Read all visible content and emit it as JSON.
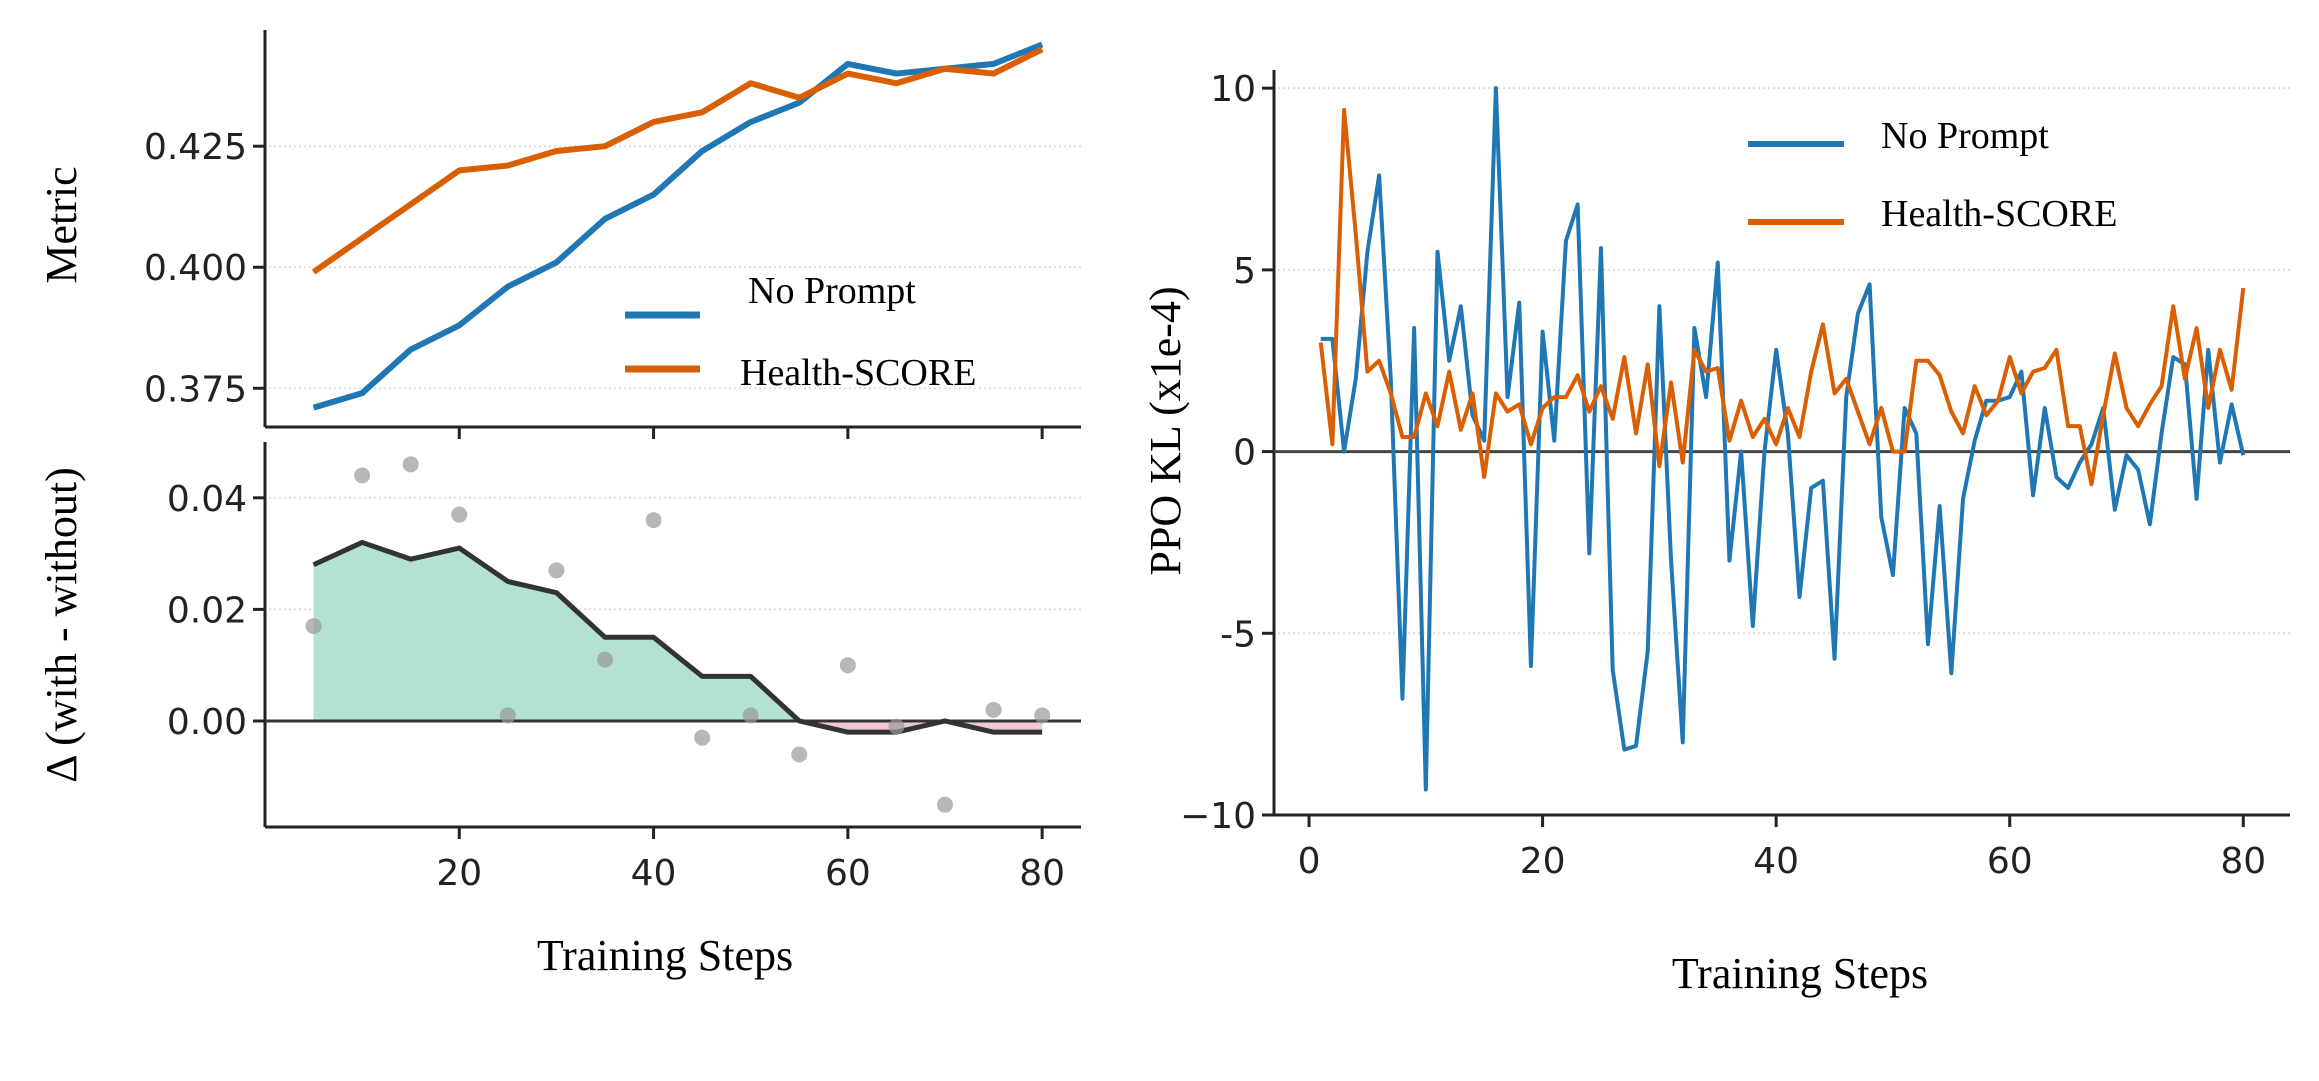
{
  "chart_data": [
    {
      "type": "line",
      "ylabel": "Metric",
      "x": [
        5,
        10,
        15,
        20,
        25,
        30,
        35,
        40,
        45,
        50,
        55,
        60,
        65,
        70,
        75,
        80
      ],
      "ylim": [
        0.367,
        0.449
      ],
      "xlim": [
        0,
        84
      ],
      "yticks": [
        0.375,
        0.4,
        0.425
      ],
      "ytick_labels": [
        "0.375",
        "0.400",
        "0.425"
      ],
      "grid": "horizontal dotted",
      "legend_placement": "lower-right",
      "series": [
        {
          "name": "No Prompt",
          "color": "#1f77b4",
          "values": [
            0.371,
            0.374,
            0.383,
            0.388,
            0.396,
            0.401,
            0.41,
            0.415,
            0.424,
            0.43,
            0.434,
            0.442,
            0.44,
            0.441,
            0.442,
            0.446
          ]
        },
        {
          "name": "Health-SCORE",
          "color": "#d95f02",
          "values": [
            0.399,
            0.406,
            0.413,
            0.42,
            0.421,
            0.424,
            0.425,
            0.43,
            0.432,
            0.438,
            0.435,
            0.44,
            0.438,
            0.441,
            0.44,
            0.445
          ]
        }
      ]
    },
    {
      "type": "area",
      "xlabel": "Training Steps",
      "ylabel": "Δ (with - without)",
      "x": [
        5,
        10,
        15,
        20,
        25,
        30,
        35,
        40,
        45,
        50,
        55,
        60,
        65,
        70,
        75,
        80
      ],
      "ylim": [
        -0.019,
        0.05
      ],
      "xlim": [
        0,
        84
      ],
      "xticks": [
        20,
        40,
        60,
        80
      ],
      "xtick_labels": [
        "20",
        "40",
        "60",
        "80"
      ],
      "yticks": [
        0.0,
        0.02,
        0.04
      ],
      "ytick_labels": [
        "0.00",
        "0.02",
        "0.04"
      ],
      "grid": "horizontal dotted",
      "smoothed": [
        0.028,
        0.032,
        0.029,
        0.031,
        0.025,
        0.023,
        0.015,
        0.015,
        0.008,
        0.008,
        0.0,
        -0.002,
        -0.002,
        0.0,
        -0.002,
        -0.002
      ],
      "points": [
        0.017,
        0.044,
        0.046,
        0.037,
        0.001,
        0.027,
        0.011,
        0.036,
        -0.003,
        0.001,
        -0.006,
        0.01,
        -0.001,
        -0.015,
        0.002,
        0.001
      ],
      "colors": {
        "positive_fill": "#b3e2d3",
        "negative_fill": "#f4c6dc",
        "line": "#333333",
        "points": "#999999"
      }
    },
    {
      "type": "line",
      "xlabel": "Training Steps",
      "ylabel": "PPO KL (x1e-4)",
      "xlim": [
        -3,
        84
      ],
      "ylim": [
        -10,
        10.5
      ],
      "xticks": [
        0,
        20,
        40,
        60,
        80
      ],
      "xtick_labels": [
        "0",
        "20",
        "40",
        "60",
        "80"
      ],
      "yticks": [
        -10,
        -5,
        0,
        5,
        10
      ],
      "ytick_labels": [
        "−10",
        "-5",
        "0",
        "5",
        "10"
      ],
      "grid": "horizontal dotted",
      "legend_placement": "top-right",
      "series": [
        {
          "name": "No Prompt",
          "color": "#1f77b4",
          "values": [
            3.1,
            3.1,
            0,
            2,
            5.5,
            7.6,
            2,
            -6.8,
            3.4,
            -9.3,
            5.5,
            2.5,
            4,
            1,
            0.3,
            10,
            1.5,
            4.1,
            -5.9,
            3.3,
            0.3,
            5.8,
            6.8,
            -2.8,
            5.6,
            -6,
            -8.2,
            -8.1,
            -5.5,
            4,
            -3,
            -8,
            3.4,
            1.5,
            5.2,
            -3,
            0,
            -4.8,
            0,
            2.8,
            0.5,
            -4,
            -1,
            -0.8,
            -5.7,
            1.5,
            3.8,
            4.6,
            -1.8,
            -3.4,
            1.2,
            0.5,
            -5.3,
            -1.5,
            -6.1,
            -1.3,
            0.3,
            1.4,
            1.4,
            1.5,
            2.2,
            -1.2,
            1.2,
            -0.7,
            -1,
            -0.3,
            0.2,
            1.2,
            -1.6,
            -0.1,
            -0.5,
            -2,
            0.5,
            2.6,
            2.4,
            -1.3,
            2.8,
            -0.3,
            1.3,
            -0.1
          ]
        },
        {
          "name": "Health-SCORE",
          "color": "#d95f02",
          "values": [
            3,
            0.2,
            9.4,
            6,
            2.2,
            2.5,
            1.6,
            0.4,
            0.4,
            1.6,
            0.7,
            2.2,
            0.6,
            1.6,
            -0.7,
            1.6,
            1.1,
            1.3,
            0.2,
            1.2,
            1.5,
            1.5,
            2.1,
            1.1,
            1.8,
            0.9,
            2.6,
            0.5,
            2.4,
            -0.4,
            1.9,
            -0.3,
            2.8,
            2.2,
            2.3,
            0.3,
            1.4,
            0.4,
            0.9,
            0.2,
            1.2,
            0.4,
            2.2,
            3.5,
            1.6,
            2,
            1.1,
            0.2,
            1.2,
            0,
            0,
            2.5,
            2.5,
            2.1,
            1.1,
            0.5,
            1.8,
            1,
            1.4,
            2.6,
            1.6,
            2.2,
            2.3,
            2.8,
            0.7,
            0.7,
            -0.9,
            1,
            2.7,
            1.2,
            0.7,
            1.3,
            1.8,
            4,
            2,
            3.4,
            1.2,
            2.8,
            1.7,
            4.5
          ]
        }
      ]
    }
  ]
}
